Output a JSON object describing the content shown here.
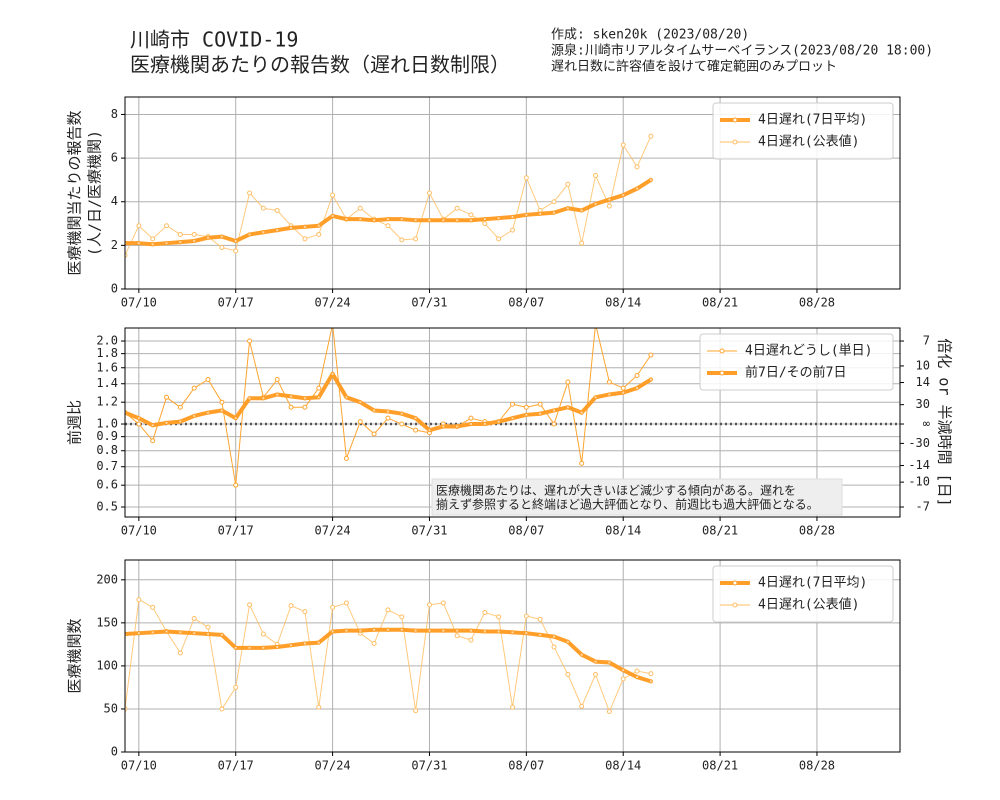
{
  "header": {
    "title": [
      "川崎市 COVID-19",
      "医療機関あたりの報告数（遅れ日数制限）"
    ],
    "notes": [
      "作成: sken20k (2023/08/20)",
      "源泉:川崎市リアルタイムサーベイランス(2023/08/20 18:00)",
      "遅れ日数に許容値を設けて確定範囲のみプロット"
    ]
  },
  "chart_data": [
    {
      "type": "line",
      "ylabel": [
        "医療機関当たりの報告数",
        "(人/日/医療機関)"
      ],
      "x": [
        "07/09",
        "07/10",
        "07/11",
        "07/12",
        "07/13",
        "07/14",
        "07/15",
        "07/16",
        "07/17",
        "07/18",
        "07/19",
        "07/20",
        "07/21",
        "07/22",
        "07/23",
        "07/24",
        "07/25",
        "07/26",
        "07/27",
        "07/28",
        "07/29",
        "07/30",
        "07/31",
        "08/01",
        "08/02",
        "08/03",
        "08/04",
        "08/05",
        "08/06",
        "08/07",
        "08/08",
        "08/09",
        "08/10",
        "08/11",
        "08/12",
        "08/13",
        "08/14",
        "08/15",
        "08/16"
      ],
      "series": [
        {
          "name": "4日遅れ(7日平均)",
          "color": "#ff9f2a",
          "linewidth": 4,
          "values": [
            2.1,
            2.1,
            2.05,
            2.1,
            2.15,
            2.2,
            2.35,
            2.4,
            2.2,
            2.5,
            2.6,
            2.7,
            2.8,
            2.85,
            2.9,
            3.35,
            3.2,
            3.2,
            3.15,
            3.2,
            3.2,
            3.15,
            3.15,
            3.15,
            3.15,
            3.15,
            3.2,
            3.25,
            3.3,
            3.4,
            3.45,
            3.5,
            3.7,
            3.6,
            3.9,
            4.1,
            4.3,
            4.6,
            5.0
          ]
        },
        {
          "name": "4日遅れ(公表値)",
          "color": "#ffbf66",
          "linewidth": 1,
          "values": [
            1.55,
            2.9,
            2.3,
            2.9,
            2.5,
            2.5,
            2.4,
            1.9,
            1.75,
            4.4,
            3.7,
            3.6,
            2.9,
            2.3,
            2.5,
            4.3,
            3.2,
            3.7,
            3.2,
            2.9,
            2.25,
            2.3,
            4.4,
            3.2,
            3.7,
            3.4,
            3.0,
            2.3,
            2.7,
            5.1,
            3.6,
            4.0,
            4.8,
            2.1,
            5.2,
            3.8,
            6.6,
            5.6,
            7.0
          ]
        }
      ],
      "xlim": [
        "07/09",
        "09/03"
      ],
      "xticks": [
        "07/10",
        "07/17",
        "07/24",
        "07/31",
        "08/07",
        "08/14",
        "08/21",
        "08/28"
      ],
      "ylim": [
        0,
        8.8
      ],
      "yticks": [
        0,
        2,
        4,
        6,
        8
      ],
      "grid": true,
      "legend": "upper right"
    },
    {
      "type": "line",
      "ylabel": [
        "前週比"
      ],
      "y2label": "倍化 or 半減時間 [日]",
      "yscale": "log",
      "hline": 1,
      "x": [
        "07/09",
        "07/10",
        "07/11",
        "07/12",
        "07/13",
        "07/14",
        "07/15",
        "07/16",
        "07/17",
        "07/18",
        "07/19",
        "07/20",
        "07/21",
        "07/22",
        "07/23",
        "07/24",
        "07/25",
        "07/26",
        "07/27",
        "07/28",
        "07/29",
        "07/30",
        "07/31",
        "08/01",
        "08/02",
        "08/03",
        "08/04",
        "08/05",
        "08/06",
        "08/07",
        "08/08",
        "08/09",
        "08/10",
        "08/11",
        "08/12",
        "08/13",
        "08/14",
        "08/15",
        "08/16"
      ],
      "series": [
        {
          "name": "4日遅れどうし(単日)",
          "color": "#ffa530",
          "linewidth": 1,
          "values": [
            1.1,
            1.0,
            0.87,
            1.25,
            1.15,
            1.35,
            1.45,
            1.2,
            0.6,
            2.0,
            1.25,
            1.45,
            1.15,
            1.15,
            1.35,
            2.3,
            0.75,
            1.02,
            0.92,
            1.05,
            1.0,
            0.95,
            0.93,
            1.0,
            0.98,
            1.05,
            1.02,
            1.02,
            1.18,
            1.15,
            1.18,
            1.0,
            1.42,
            0.72,
            2.3,
            1.42,
            1.35,
            1.5,
            1.78
          ]
        },
        {
          "name": "前7日/その前7日",
          "color": "#ff9f2a",
          "linewidth": 4,
          "values": [
            1.1,
            1.05,
            0.99,
            1.01,
            1.02,
            1.07,
            1.1,
            1.12,
            1.05,
            1.24,
            1.24,
            1.28,
            1.26,
            1.24,
            1.25,
            1.52,
            1.25,
            1.2,
            1.12,
            1.11,
            1.09,
            1.05,
            0.95,
            0.98,
            0.98,
            1.0,
            1.0,
            1.02,
            1.05,
            1.08,
            1.09,
            1.12,
            1.15,
            1.1,
            1.25,
            1.28,
            1.3,
            1.35,
            1.45
          ]
        }
      ],
      "xlim": [
        "07/09",
        "09/03"
      ],
      "xticks": [
        "07/10",
        "07/17",
        "07/24",
        "07/31",
        "08/07",
        "08/14",
        "08/21",
        "08/28"
      ],
      "ylim": [
        0.46,
        2.23
      ],
      "yticks": [
        0.5,
        0.6,
        0.7,
        0.8,
        0.9,
        {
          "value": 1,
          "label": "1.0"
        },
        1.2,
        1.4,
        1.6,
        1.8,
        {
          "value": 2,
          "label": "2.0"
        }
      ],
      "y2ticks": [
        7,
        10,
        14,
        30,
        {
          "value": null,
          "label": "∞"
        },
        -30,
        -14,
        -10,
        -7
      ],
      "annotation": [
        "医療機関あたりは、遅れが大きいほど減少する傾向がある。遅れを",
        "揃えず参照すると終端ほど過大評価となり、前週比も過大評価となる。"
      ],
      "grid": true,
      "legend": "upper right"
    },
    {
      "type": "line",
      "ylabel": [
        "医療機関数"
      ],
      "x": [
        "07/09",
        "07/10",
        "07/11",
        "07/12",
        "07/13",
        "07/14",
        "07/15",
        "07/16",
        "07/17",
        "07/18",
        "07/19",
        "07/20",
        "07/21",
        "07/22",
        "07/23",
        "07/24",
        "07/25",
        "07/26",
        "07/27",
        "07/28",
        "07/29",
        "07/30",
        "07/31",
        "08/01",
        "08/02",
        "08/03",
        "08/04",
        "08/05",
        "08/06",
        "08/07",
        "08/08",
        "08/09",
        "08/10",
        "08/11",
        "08/12",
        "08/13",
        "08/14",
        "08/15",
        "08/16"
      ],
      "series": [
        {
          "name": "4日遅れ(7日平均)",
          "color": "#ff9f2a",
          "linewidth": 4,
          "values": [
            137,
            138,
            139,
            140,
            139,
            138,
            137,
            136,
            121,
            121,
            121,
            122,
            124,
            126,
            127,
            140,
            141,
            141,
            142,
            142,
            142,
            141,
            141,
            141,
            141,
            141,
            140,
            140,
            139,
            138,
            136,
            134,
            128,
            113,
            105,
            104,
            95,
            87,
            82
          ]
        },
        {
          "name": "4日遅れ(公表値)",
          "color": "#ffbf66",
          "linewidth": 1,
          "values": [
            50,
            177,
            168,
            140,
            115,
            155,
            145,
            50,
            75,
            171,
            137,
            125,
            170,
            163,
            52,
            168,
            173,
            138,
            126,
            165,
            157,
            48,
            171,
            173,
            135,
            130,
            162,
            157,
            52,
            158,
            154,
            122,
            90,
            53,
            90,
            47,
            85,
            94,
            91
          ]
        }
      ],
      "xlim": [
        "07/09",
        "09/03"
      ],
      "xticks": [
        "07/10",
        "07/17",
        "07/24",
        "07/31",
        "08/07",
        "08/14",
        "08/21",
        "08/28"
      ],
      "ylim": [
        0,
        223
      ],
      "yticks": [
        0,
        50,
        100,
        150,
        200
      ],
      "grid": true,
      "legend": "upper right"
    }
  ]
}
